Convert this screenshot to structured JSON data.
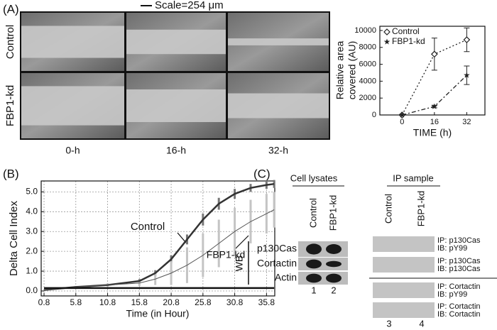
{
  "panel_labels": [
    "(A)",
    "(B)",
    "(C)"
  ],
  "images": {
    "scale": "Scale=254 μm",
    "rows": [
      "Control",
      "FBP1-kd"
    ],
    "columns": [
      "0-h",
      "16-h",
      "32-h"
    ]
  },
  "chart_data": [
    {
      "type": "line",
      "ylabel": [
        "Relative area",
        "covered (AU)"
      ],
      "xlabel": "TIME (h)",
      "x": [
        0,
        16,
        32
      ],
      "xlim": [
        -11,
        41
      ],
      "xticks": [
        0,
        16,
        32
      ],
      "ylim": [
        0,
        10500
      ],
      "yticks": [
        0,
        2000,
        4000,
        6000,
        8000,
        10000
      ],
      "legend": "upper left",
      "series": [
        {
          "name": "Control",
          "color": "#222222",
          "linestyle": "dotted",
          "marker": "diamond-open",
          "values": [
            0,
            7200,
            8900
          ],
          "errors": [
            0,
            1900,
            1400
          ]
        },
        {
          "name": "FBP1-kd",
          "color": "#222222",
          "linestyle": "dashdot",
          "marker": "star",
          "values": [
            0,
            1000,
            4700
          ],
          "errors": [
            0,
            150,
            1100
          ]
        }
      ]
    },
    {
      "type": "line",
      "ylabel": "Delta Cell Index",
      "xlabel": "Time (in Hour)",
      "x": [
        0.8,
        5.8,
        10.8,
        15.8,
        18.3,
        20.8,
        23.3,
        25.8,
        28.3,
        30.8,
        33.3,
        35.8,
        37.0
      ],
      "xlim": [
        0.35,
        37.1
      ],
      "xticks": [
        0.8,
        5.8,
        10.8,
        15.8,
        20.8,
        25.8,
        30.8,
        35.8
      ],
      "ylim": [
        -0.25,
        5.55
      ],
      "yticks": [
        {
          "value": 0,
          "label": "0.0"
        },
        {
          "value": 1,
          "label": "1.0"
        },
        {
          "value": 2,
          "label": "2.0"
        },
        {
          "value": 3,
          "label": "3.0"
        },
        {
          "value": 4,
          "label": "4.0"
        },
        {
          "value": 5,
          "label": "5.0"
        }
      ],
      "grid": true,
      "annotations": [
        "Control",
        "FBP1-kd"
      ],
      "series": [
        {
          "name": "Control",
          "color": "#333333",
          "error_color": "#777777",
          "width": 2.5,
          "values": [
            0.05,
            0.2,
            0.3,
            0.5,
            0.9,
            1.6,
            2.6,
            3.6,
            4.4,
            4.9,
            5.2,
            5.35,
            5.4
          ],
          "errors": [
            0.02,
            0.05,
            0.06,
            0.1,
            0.15,
            0.2,
            0.25,
            0.3,
            0.3,
            0.25,
            0.2,
            0.2,
            0.2
          ]
        },
        {
          "name": "FBP1-kd",
          "color": "#555555",
          "error_color": "#c4c4c4",
          "width": 1,
          "values": [
            0.05,
            0.2,
            0.3,
            0.4,
            0.6,
            0.9,
            1.3,
            1.8,
            2.4,
            3.0,
            3.5,
            3.9,
            4.1
          ],
          "errors": [
            0.02,
            0.05,
            0.08,
            0.15,
            0.3,
            0.6,
            0.9,
            1.1,
            1.2,
            1.2,
            1.1,
            1.0,
            0.9
          ]
        },
        {
          "color": "#111111",
          "width": 2.5,
          "values": [
            0.15,
            0.15,
            0.15,
            0.15,
            0.15,
            0.15,
            0.15,
            0.15,
            0.15,
            0.15,
            0.15,
            0.15,
            0.15
          ]
        }
      ]
    }
  ],
  "blots": {
    "cell_lysates": {
      "title": "Cell lysates",
      "columns": [
        "Control",
        "FBP1-kd"
      ],
      "group_label": "WB",
      "rows": [
        "p130Cas",
        "Cortactin",
        "Actin"
      ],
      "lanes": [
        1,
        2
      ]
    },
    "ip_sample": {
      "title": "IP sample",
      "columns": [
        "Control",
        "FBP1-kd"
      ],
      "rows": [
        [
          "IP: p130Cas",
          "IB: pY99"
        ],
        [
          "IP: p130Cas",
          "IB: p130Cas"
        ],
        [
          "IP: Cortactin",
          "IB: pY99"
        ],
        [
          "IP: Cortactin",
          "IB: Cortactin"
        ]
      ],
      "lanes": [
        3,
        4
      ]
    }
  }
}
